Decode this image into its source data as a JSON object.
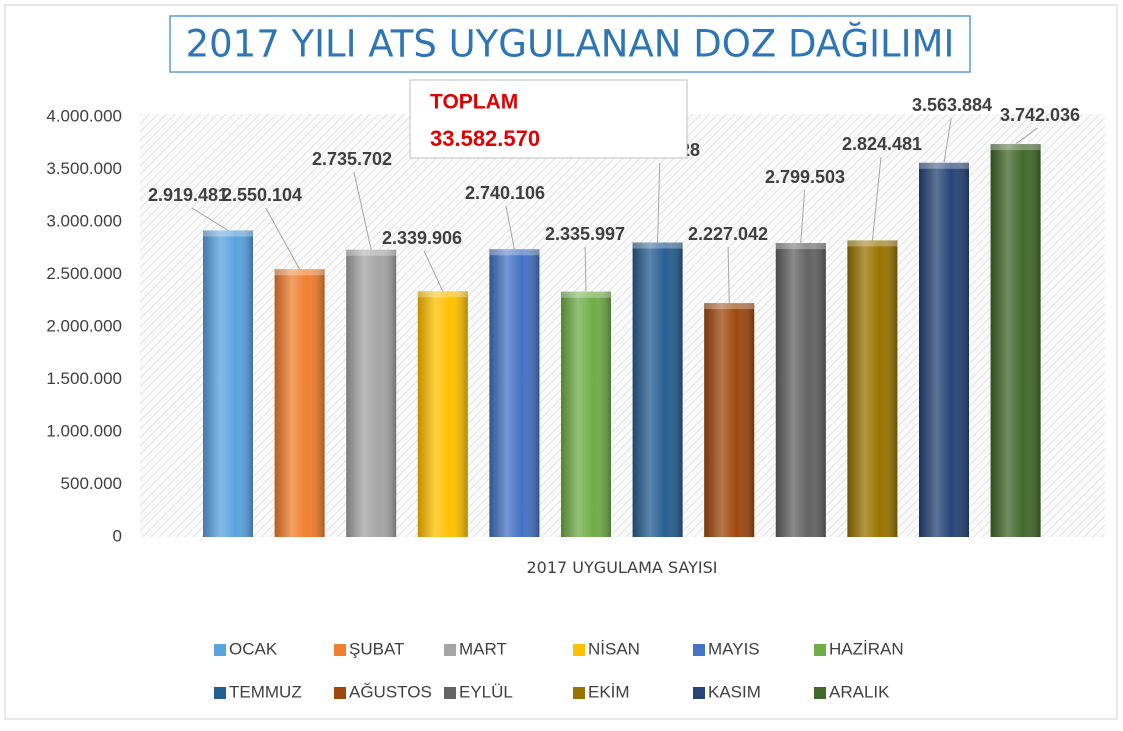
{
  "chart_data": {
    "type": "bar",
    "title": "2017 YILI ATS UYGULANAN DOZ DAĞILIMI",
    "annotation": {
      "title": "TOPLAM",
      "text": "33.582.570"
    },
    "categories": [
      "2017 UYGULAMA SAYISI"
    ],
    "series": [
      {
        "name": "OCAK",
        "color": "#5ba3e0",
        "values": [
          2919481
        ],
        "value_labels": [
          "2.919.481"
        ]
      },
      {
        "name": "ŞUBAT",
        "color": "#f07f2f",
        "values": [
          2550104
        ],
        "value_labels": [
          "2.550.104"
        ]
      },
      {
        "name": "MART",
        "color": "#a5a5a5",
        "values": [
          2735702
        ],
        "value_labels": [
          "2.735.702"
        ]
      },
      {
        "name": "NİSAN",
        "color": "#ffc000",
        "values": [
          2339906
        ],
        "value_labels": [
          "2.339.906"
        ]
      },
      {
        "name": "MAYIS",
        "color": "#4472c4",
        "values": [
          2740106
        ],
        "value_labels": [
          "2.740.106"
        ]
      },
      {
        "name": "HAZİRAN",
        "color": "#70ad47",
        "values": [
          2335997
        ],
        "value_labels": [
          "2.335.997"
        ]
      },
      {
        "name": "TEMMUZ",
        "color": "#255e91",
        "values": [
          2804328
        ],
        "value_labels": [
          "2.804.328"
        ]
      },
      {
        "name": "AĞUSTOS",
        "color": "#9e480e",
        "values": [
          2227042
        ],
        "value_labels": [
          "2.227.042"
        ]
      },
      {
        "name": "EYLÜL",
        "color": "#636363",
        "values": [
          2799503
        ],
        "value_labels": [
          "2.799.503"
        ]
      },
      {
        "name": "EKİM",
        "color": "#997300",
        "values": [
          2824481
        ],
        "value_labels": [
          "2.824.481"
        ]
      },
      {
        "name": "KASIM",
        "color": "#264478",
        "values": [
          3563884
        ],
        "value_labels": [
          "3.563.884"
        ]
      },
      {
        "name": "ARALIK",
        "color": "#43682b",
        "values": [
          3742036
        ],
        "value_labels": [
          "3.742.036"
        ]
      }
    ],
    "ylim": [
      0,
      4000000
    ],
    "yticks": [
      0,
      {
        "value": 500000,
        "label": "500.000"
      },
      {
        "value": 1000000,
        "label": "1.000.000"
      },
      {
        "value": 1500000,
        "label": "1.500.000"
      },
      {
        "value": 2000000,
        "label": "2.000.000"
      },
      {
        "value": 2500000,
        "label": "2.500.000"
      },
      {
        "value": 3000000,
        "label": "3.000.000"
      },
      {
        "value": 3500000,
        "label": "3.500.000"
      },
      {
        "value": 4000000,
        "label": "4.000.000"
      }
    ],
    "grid": false,
    "legend": "bottom"
  }
}
